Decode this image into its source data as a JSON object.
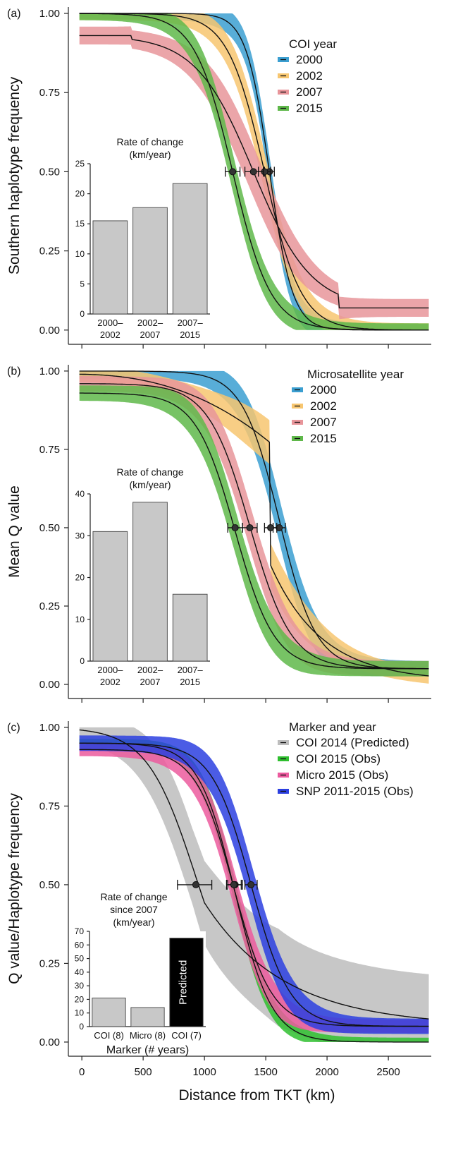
{
  "xaxis": {
    "label": "Distance from TKT (km)",
    "ticks": [
      0,
      500,
      1000,
      1500,
      2000,
      2500
    ],
    "xlim": [
      -110,
      2850
    ]
  },
  "chart_data": [
    {
      "type": "line",
      "tag": "(a)",
      "ylabel": "Southern haplotype frequency",
      "ylim": [
        -0.045,
        1.02
      ],
      "yticks": [
        "0.00",
        "0.25",
        "0.50",
        "0.75",
        "1.00"
      ],
      "yticks_values": [
        0,
        0.25,
        0.5,
        0.75,
        1.0
      ],
      "legend": {
        "title": "COI year",
        "position": "top-right"
      },
      "series": [
        {
          "name": "2000",
          "color": "#3b9fd1",
          "kind": "logistic",
          "center": 1530,
          "width": 95,
          "ymin": 0.0,
          "ymax": 1.0,
          "bandw": 0.05,
          "ci": [
            1490,
            1570
          ]
        },
        {
          "name": "2002",
          "color": "#f7c670",
          "kind": "logistic",
          "center": 1490,
          "width": 150,
          "ymin": 0.0,
          "ymax": 1.0,
          "bandw": 0.06,
          "ci": [
            1440,
            1540
          ]
        },
        {
          "name": "2007",
          "color": "#e8959a",
          "kind": "logistic",
          "center": 1400,
          "width": 235,
          "ymin": 0.07,
          "ymax": 0.93,
          "bandw": 0.08,
          "ci": [
            1330,
            1480
          ],
          "flat_after": 2100,
          "flat_before": 400
        },
        {
          "name": "2015",
          "color": "#5fb84a",
          "kind": "logistic",
          "center": 1230,
          "width": 155,
          "ymin": 0.0,
          "ymax": 1.0,
          "bandw": 0.06,
          "ci": [
            1170,
            1290
          ]
        }
      ],
      "inset": {
        "title": [
          "Rate of change",
          "(km/year)"
        ],
        "categories": [
          [
            "2000–",
            "2002"
          ],
          [
            "2002–",
            "2007"
          ],
          [
            "2007–",
            "2015"
          ]
        ],
        "values": [
          15.5,
          17.7,
          21.7
        ],
        "ylim": [
          0,
          25
        ],
        "yticks": [
          0,
          5,
          10,
          15,
          20,
          25
        ],
        "xlabel": "",
        "bar_labels": [
          "",
          "",
          ""
        ]
      }
    },
    {
      "type": "line",
      "tag": "(b)",
      "ylabel": "Mean Q value",
      "ylim": [
        -0.045,
        1.02
      ],
      "yticks": [
        "0.00",
        "0.25",
        "0.50",
        "0.75",
        "1.00"
      ],
      "yticks_values": [
        0,
        0.25,
        0.5,
        0.75,
        1.0
      ],
      "legend": {
        "title": "Microsatellite year",
        "position": "top-right"
      },
      "series": [
        {
          "name": "2000",
          "color": "#3b9fd1",
          "kind": "logistic",
          "center": 1610,
          "width": 150,
          "ymin": 0.05,
          "ymax": 1.0,
          "bandw": 0.07,
          "ci": [
            1560,
            1660
          ]
        },
        {
          "name": "2002",
          "color": "#f7c670",
          "kind": "step",
          "center": 1540,
          "ymin": 0.01,
          "ymax": 0.99,
          "bandw": 0.07,
          "ci": [
            1490,
            1590
          ]
        },
        {
          "name": "2007",
          "color": "#e8959a",
          "kind": "logistic",
          "center": 1370,
          "width": 170,
          "ymin": 0.05,
          "ymax": 0.96,
          "bandw": 0.07,
          "ci": [
            1310,
            1430
          ]
        },
        {
          "name": "2015",
          "color": "#5fb84a",
          "kind": "logistic",
          "center": 1250,
          "width": 160,
          "ymin": 0.05,
          "ymax": 0.93,
          "bandw": 0.07,
          "ci": [
            1190,
            1310
          ]
        }
      ],
      "inset": {
        "title": [
          "Rate of change",
          "(km/year)"
        ],
        "categories": [
          [
            "2000–",
            "2002"
          ],
          [
            "2002–",
            "2007"
          ],
          [
            "2007–",
            "2015"
          ]
        ],
        "values": [
          31,
          38,
          16
        ],
        "ylim": [
          0,
          40
        ],
        "yticks": [
          0,
          10,
          20,
          30,
          40
        ],
        "xlabel": "",
        "bar_labels": [
          "",
          "",
          ""
        ]
      }
    },
    {
      "type": "line",
      "tag": "(c)",
      "ylabel": "Q value/Haplotype frequency",
      "ylim": [
        -0.045,
        1.02
      ],
      "yticks": [
        "0.00",
        "0.25",
        "0.50",
        "0.75",
        "1.00"
      ],
      "yticks_values": [
        0,
        0.25,
        0.5,
        0.75,
        1.0
      ],
      "legend": {
        "title": "Marker and year",
        "position": "top-right"
      },
      "series": [
        {
          "name": "COI 2014 (Predicted)",
          "color": "#bdbdbd",
          "kind": "logistic",
          "center": 930,
          "width": 200,
          "ymin": 0.05,
          "ymax": 1.0,
          "bandw": 0.12,
          "ci": [
            780,
            1060
          ],
          "slow_tail": true
        },
        {
          "name": "COI 2015 (Obs)",
          "color": "#2fbf2f",
          "kind": "logistic",
          "center": 1250,
          "width": 150,
          "ymin": 0.0,
          "ymax": 0.95,
          "bandw": 0.04,
          "ci": [
            1190,
            1310
          ]
        },
        {
          "name": "Micro 2015 (Obs)",
          "color": "#ec5a9e",
          "kind": "logistic",
          "center": 1240,
          "width": 155,
          "ymin": 0.05,
          "ymax": 0.93,
          "bandw": 0.06,
          "ci": [
            1180,
            1300
          ]
        },
        {
          "name": "SNP 2011-2015 (Obs)",
          "color": "#2b3fe0",
          "kind": "logistic",
          "center": 1380,
          "width": 160,
          "ymin": 0.05,
          "ymax": 0.95,
          "bandw": 0.07,
          "ci": [
            1330,
            1430
          ]
        }
      ],
      "inset": {
        "title": [
          "Rate of change",
          "since 2007",
          "(km/year)"
        ],
        "categories": [
          [
            "COI (8)"
          ],
          [
            "Micro (8)"
          ],
          [
            "COI (7)"
          ]
        ],
        "values": [
          21,
          14,
          65
        ],
        "ylim": [
          0,
          70
        ],
        "yticks": [
          0,
          10,
          20,
          30,
          40,
          50,
          60,
          70
        ],
        "xlabel": "Marker (# years)",
        "bar_colors": [
          "#c8c8c8",
          "#c8c8c8",
          "#000000"
        ],
        "bar_labels": [
          "",
          "",
          "Predicted"
        ]
      }
    }
  ]
}
